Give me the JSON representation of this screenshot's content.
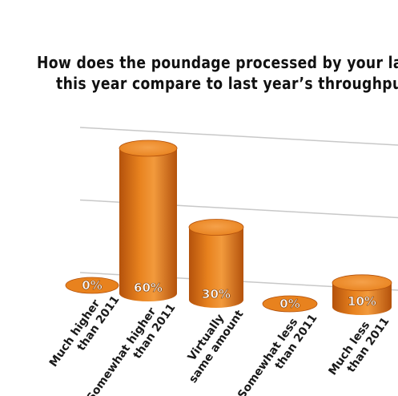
{
  "chart_data": {
    "type": "bar",
    "title_lines": [
      "How does the poundage processed by your lau",
      "this year compare to last year’s throughpu"
    ],
    "categories": [
      [
        "Much higher",
        "than 2011"
      ],
      [
        "Somewhat higher",
        "than 2011"
      ],
      [
        "Virtually",
        "same amount"
      ],
      [
        "Somewhat less",
        "than 2011"
      ],
      [
        "Much less",
        "than 2011"
      ]
    ],
    "values": [
      0,
      60,
      30,
      0,
      10
    ],
    "value_labels": [
      "0%",
      "60%",
      "30%",
      "0%",
      "10%"
    ],
    "ylim": [
      0,
      70
    ],
    "grid": true,
    "bar_color": "#e8821e",
    "bar_dark_color": "#b4520c",
    "bar_top_color": "#f5a14a"
  }
}
